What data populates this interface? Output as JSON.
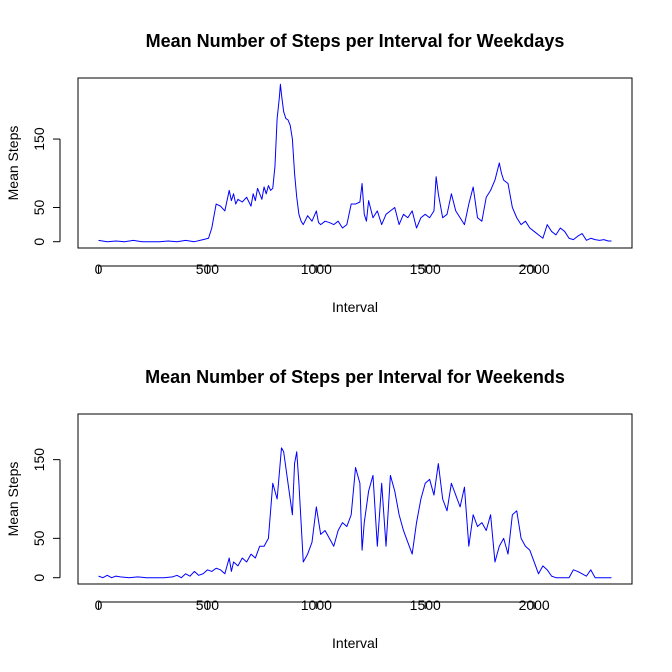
{
  "chart_data": [
    {
      "type": "line",
      "title": "Mean Number of Steps per Interval for Weekdays",
      "xlabel": "Interval",
      "ylabel": "Mean Steps",
      "xlim": [
        0,
        2355
      ],
      "ylim": [
        0,
        230
      ],
      "xticks": [
        0,
        500,
        1000,
        1500,
        2000
      ],
      "yticks": [
        0,
        50,
        150
      ],
      "color": "#0000ff",
      "series": [
        {
          "x": [
            0,
            40,
            80,
            120,
            160,
            200,
            240,
            280,
            320,
            360,
            400,
            440,
            480,
            505,
            520,
            540,
            560,
            580,
            600,
            610,
            620,
            630,
            640,
            660,
            680,
            700,
            710,
            720,
            730,
            740,
            750,
            760,
            770,
            780,
            790,
            800,
            810,
            820,
            830,
            835,
            840,
            850,
            860,
            870,
            880,
            890,
            900,
            910,
            920,
            930,
            940,
            960,
            980,
            1000,
            1010,
            1020,
            1040,
            1060,
            1080,
            1100,
            1120,
            1140,
            1160,
            1180,
            1200,
            1210,
            1220,
            1230,
            1240,
            1260,
            1280,
            1300,
            1320,
            1340,
            1360,
            1380,
            1400,
            1420,
            1440,
            1460,
            1480,
            1500,
            1520,
            1540,
            1550,
            1560,
            1580,
            1600,
            1620,
            1640,
            1660,
            1680,
            1700,
            1720,
            1740,
            1760,
            1780,
            1800,
            1820,
            1840,
            1850,
            1860,
            1880,
            1900,
            1920,
            1940,
            1960,
            1980,
            2000,
            2020,
            2040,
            2060,
            2080,
            2100,
            2120,
            2140,
            2160,
            2180,
            2200,
            2220,
            2240,
            2260,
            2280,
            2300,
            2320,
            2340,
            2355
          ],
          "y": [
            2,
            0,
            1,
            0,
            2,
            0,
            0,
            0,
            1,
            0,
            2,
            0,
            3,
            5,
            20,
            55,
            52,
            45,
            75,
            60,
            70,
            55,
            62,
            58,
            65,
            52,
            70,
            60,
            78,
            70,
            62,
            80,
            70,
            82,
            75,
            78,
            110,
            180,
            210,
            230,
            215,
            190,
            180,
            178,
            170,
            150,
            100,
            65,
            40,
            30,
            25,
            38,
            30,
            45,
            28,
            25,
            30,
            28,
            25,
            30,
            20,
            25,
            55,
            55,
            58,
            85,
            40,
            30,
            60,
            35,
            45,
            25,
            40,
            45,
            50,
            25,
            40,
            35,
            45,
            20,
            35,
            40,
            35,
            45,
            95,
            70,
            35,
            40,
            70,
            45,
            35,
            25,
            55,
            80,
            35,
            30,
            65,
            75,
            90,
            115,
            100,
            90,
            85,
            50,
            35,
            25,
            30,
            20,
            15,
            10,
            5,
            25,
            15,
            10,
            20,
            15,
            5,
            3,
            8,
            12,
            2,
            5,
            3,
            2,
            3,
            1,
            1
          ]
        }
      ]
    },
    {
      "type": "line",
      "title": "Mean Number of Steps per Interval for Weekends",
      "xlabel": "Interval",
      "ylabel": "Mean Steps",
      "xlim": [
        0,
        2355
      ],
      "ylim": [
        0,
        200
      ],
      "xticks": [
        0,
        500,
        1000,
        1500,
        2000
      ],
      "yticks": [
        0,
        50,
        150
      ],
      "color": "#0000ff",
      "series": [
        {
          "x": [
            0,
            20,
            40,
            60,
            80,
            100,
            140,
            180,
            220,
            260,
            300,
            340,
            360,
            380,
            400,
            420,
            440,
            460,
            480,
            500,
            520,
            540,
            560,
            580,
            600,
            610,
            620,
            640,
            660,
            680,
            700,
            720,
            740,
            760,
            780,
            800,
            820,
            840,
            850,
            860,
            870,
            880,
            890,
            900,
            910,
            920,
            940,
            960,
            980,
            1000,
            1020,
            1040,
            1060,
            1080,
            1100,
            1120,
            1140,
            1160,
            1180,
            1200,
            1210,
            1220,
            1240,
            1260,
            1280,
            1300,
            1320,
            1340,
            1360,
            1380,
            1400,
            1420,
            1440,
            1460,
            1480,
            1500,
            1520,
            1540,
            1560,
            1580,
            1600,
            1620,
            1640,
            1660,
            1680,
            1700,
            1720,
            1740,
            1760,
            1780,
            1800,
            1820,
            1840,
            1860,
            1880,
            1900,
            1920,
            1940,
            1960,
            1980,
            2000,
            2020,
            2040,
            2060,
            2080,
            2100,
            2120,
            2140,
            2160,
            2180,
            2200,
            2220,
            2240,
            2260,
            2280,
            2300,
            2320,
            2340,
            2355
          ],
          "y": [
            2,
            0,
            3,
            0,
            2,
            1,
            0,
            1,
            0,
            0,
            0,
            1,
            3,
            0,
            5,
            2,
            8,
            3,
            5,
            10,
            8,
            12,
            10,
            5,
            25,
            8,
            20,
            15,
            25,
            20,
            30,
            25,
            40,
            40,
            50,
            120,
            100,
            165,
            160,
            140,
            120,
            100,
            80,
            145,
            160,
            120,
            20,
            30,
            45,
            90,
            55,
            60,
            50,
            40,
            60,
            70,
            65,
            80,
            140,
            120,
            35,
            70,
            110,
            130,
            40,
            120,
            40,
            130,
            110,
            80,
            60,
            45,
            30,
            70,
            100,
            120,
            125,
            105,
            145,
            100,
            85,
            120,
            105,
            90,
            115,
            40,
            80,
            65,
            70,
            60,
            80,
            20,
            40,
            50,
            30,
            80,
            85,
            50,
            40,
            35,
            20,
            5,
            15,
            10,
            2,
            0,
            0,
            0,
            0,
            10,
            8,
            5,
            2,
            10,
            0,
            0,
            0,
            0,
            0
          ]
        }
      ]
    }
  ]
}
